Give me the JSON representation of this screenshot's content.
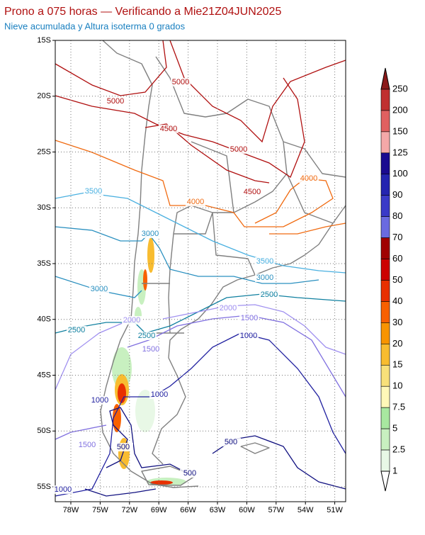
{
  "header": {
    "title": "Prono a 075 horas — Verificando a Mie21Z04JUN2025",
    "subtitle": "Nieve acumulada y Altura isoterma 0 grados"
  },
  "map": {
    "lat_ticks": [
      "15S",
      "20S",
      "25S",
      "30S",
      "35S",
      "40S",
      "45S",
      "50S",
      "55S"
    ],
    "lon_ticks": [
      "78W",
      "75W",
      "72W",
      "69W",
      "66W",
      "63W",
      "60W",
      "57W",
      "54W",
      "51W"
    ],
    "contour_labels": [
      "5000",
      "5000",
      "4500",
      "5000",
      "4500",
      "4000",
      "4000",
      "3500",
      "3000",
      "3500",
      "3000",
      "3000",
      "2500",
      "2000",
      "1500",
      "2000",
      "2500",
      "2500",
      "1000",
      "1500",
      "1000",
      "1000",
      "1500",
      "500",
      "500",
      "500",
      "1000"
    ]
  },
  "colorbar": {
    "levels": [
      250,
      200,
      150,
      125,
      100,
      90,
      80,
      70,
      60,
      50,
      40,
      30,
      20,
      15,
      10,
      7.5,
      5,
      2.5,
      1
    ],
    "colors": [
      "#8b1a1a",
      "#c03030",
      "#e06060",
      "#f4a8a8",
      "#1a0a90",
      "#2424b0",
      "#3a3ac8",
      "#6a6ae0",
      "#a00000",
      "#cc0000",
      "#e83000",
      "#f86000",
      "#f89400",
      "#f8bc30",
      "#f8e07a",
      "#fff8b8",
      "#a8e8a0",
      "#c8f0c0",
      "#e8f8e6",
      "#ffffff"
    ]
  }
}
